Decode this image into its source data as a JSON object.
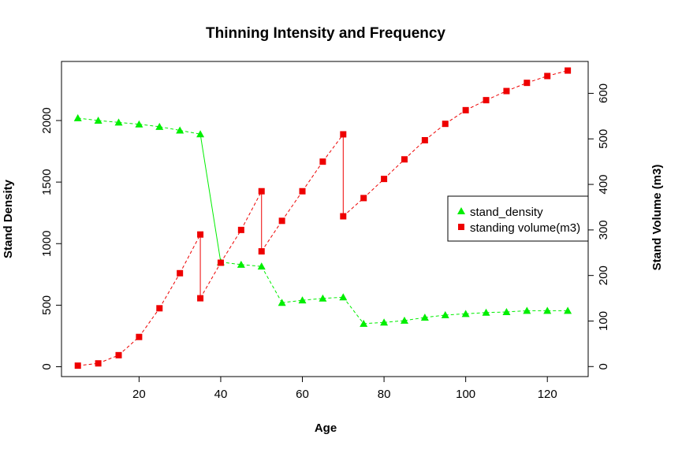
{
  "chart_data": {
    "type": "line",
    "title": "Thinning Intensity and Frequency",
    "xlabel": "Age",
    "ylabel": "Stand Density",
    "y2label": "Stand Volume (m3)",
    "xlim": [
      1,
      130
    ],
    "ylim": [
      -80,
      2480
    ],
    "y2lim": [
      -22,
      670
    ],
    "xticks": [
      20,
      40,
      60,
      80,
      100,
      120
    ],
    "yticks": [
      0,
      500,
      1000,
      1500,
      2000
    ],
    "y2ticks": [
      0,
      100,
      200,
      300,
      400,
      500,
      600
    ],
    "grid": false,
    "legend_position": "right",
    "series": [
      {
        "name": "stand_density",
        "axis": "left",
        "color": "#00ee00",
        "marker": "triangle",
        "points": [
          [
            5,
            2020
          ],
          [
            10,
            2000
          ],
          [
            15,
            1985
          ],
          [
            20,
            1970
          ],
          [
            25,
            1950
          ],
          [
            30,
            1920
          ],
          [
            35,
            1890
          ],
          [
            40,
            850
          ],
          [
            45,
            830
          ],
          [
            50,
            815
          ],
          [
            55,
            520
          ],
          [
            60,
            540
          ],
          [
            65,
            555
          ],
          [
            70,
            565
          ],
          [
            75,
            350
          ],
          [
            80,
            360
          ],
          [
            85,
            375
          ],
          [
            90,
            400
          ],
          [
            95,
            420
          ],
          [
            100,
            430
          ],
          [
            105,
            440
          ],
          [
            110,
            445
          ],
          [
            115,
            455
          ],
          [
            120,
            455
          ],
          [
            125,
            455
          ]
        ]
      },
      {
        "name": "standing volume(m3)",
        "axis": "right",
        "color": "#ee0000",
        "marker": "square",
        "points": [
          [
            5,
            2
          ],
          [
            10,
            7
          ],
          [
            15,
            25
          ],
          [
            20,
            65
          ],
          [
            25,
            128
          ],
          [
            30,
            205
          ],
          [
            35,
            290
          ],
          [
            35,
            150
          ],
          [
            40,
            228
          ],
          [
            45,
            300
          ],
          [
            50,
            385
          ],
          [
            50,
            253
          ],
          [
            55,
            320
          ],
          [
            60,
            385
          ],
          [
            65,
            450
          ],
          [
            70,
            510
          ],
          [
            70,
            330
          ],
          [
            75,
            370
          ],
          [
            80,
            412
          ],
          [
            85,
            455
          ],
          [
            90,
            497
          ],
          [
            95,
            533
          ],
          [
            100,
            563
          ],
          [
            105,
            585
          ],
          [
            110,
            605
          ],
          [
            115,
            623
          ],
          [
            120,
            638
          ],
          [
            125,
            650
          ]
        ]
      }
    ]
  }
}
